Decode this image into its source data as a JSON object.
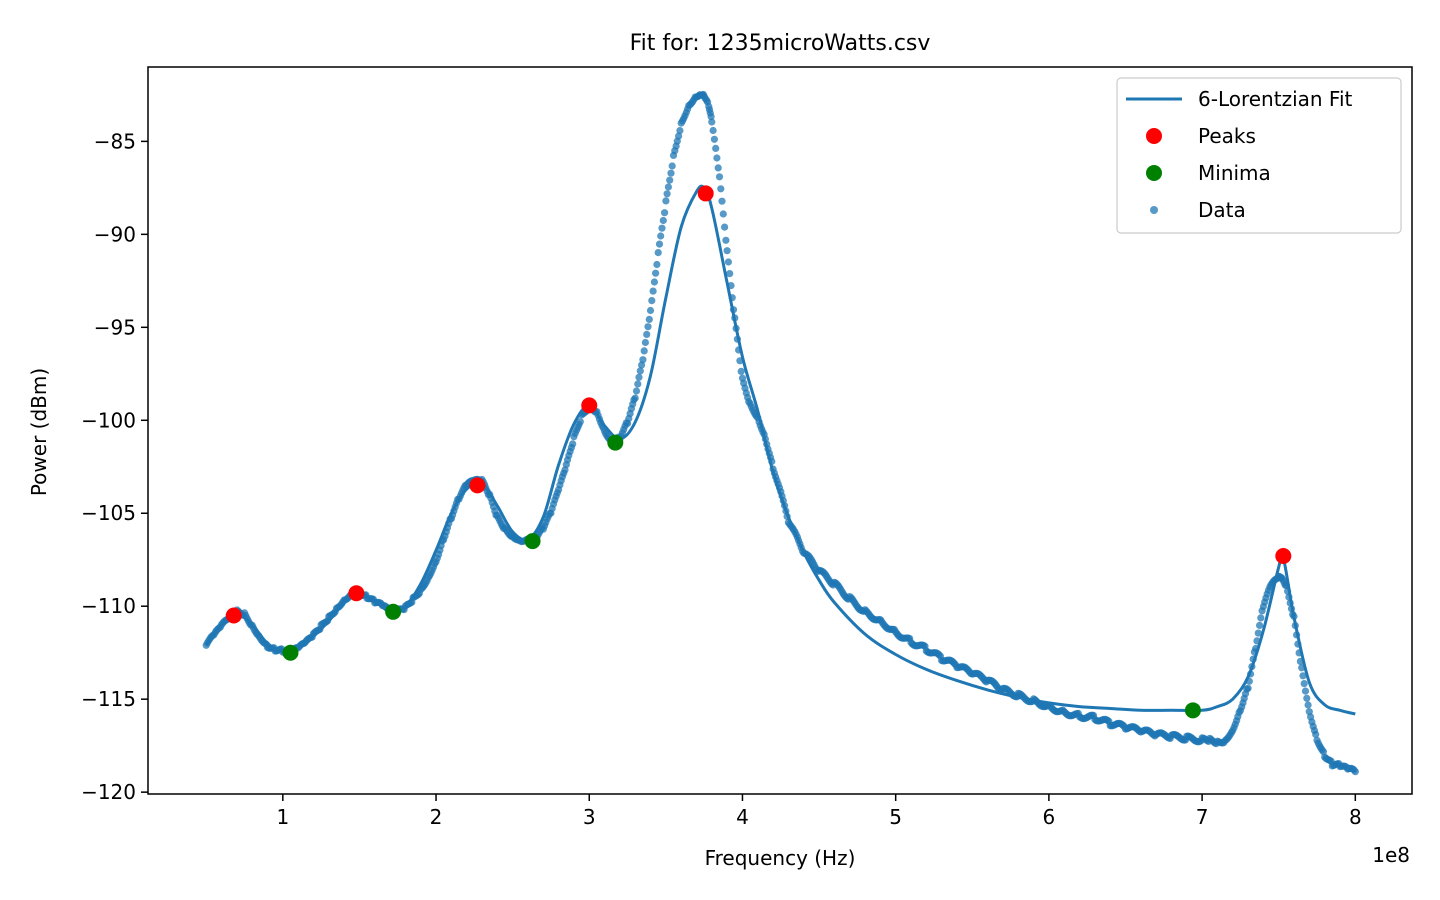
{
  "chart_data": {
    "type": "scatter",
    "title": "Fit for: 1235microWatts.csv",
    "xlabel": "Frequency (Hz)",
    "ylabel": "Power (dBm)",
    "x_offset_text": "1e8",
    "xlim": [
      0.5,
      8.0
    ],
    "ylim": [
      -120,
      -82
    ],
    "x_ticks": [
      1,
      2,
      3,
      4,
      5,
      6,
      7,
      8
    ],
    "x_tick_labels": [
      "1",
      "2",
      "3",
      "4",
      "5",
      "6",
      "7",
      "8"
    ],
    "y_ticks": [
      -85,
      -90,
      -95,
      -100,
      -105,
      -110,
      -115,
      -120
    ],
    "y_tick_labels": [
      "−85",
      "−90",
      "−95",
      "−100",
      "−105",
      "−110",
      "−115",
      "−120"
    ],
    "grid": false,
    "legend_position": "top-right",
    "colors": {
      "data": "#1f77b4",
      "fit": "#1f77b4",
      "peaks": "#ff0000",
      "minima": "#008000"
    },
    "series": [
      {
        "name": "6-Lorentzian Fit",
        "kind": "line",
        "x": [
          0.5,
          0.6,
          0.7,
          0.8,
          0.9,
          1.0,
          1.1,
          1.2,
          1.3,
          1.4,
          1.5,
          1.6,
          1.7,
          1.8,
          1.9,
          2.0,
          2.1,
          2.2,
          2.3,
          2.4,
          2.5,
          2.6,
          2.7,
          2.8,
          2.9,
          3.0,
          3.1,
          3.2,
          3.3,
          3.4,
          3.5,
          3.6,
          3.7,
          3.75,
          3.8,
          3.9,
          4.0,
          4.1,
          4.2,
          4.3,
          4.4,
          4.5,
          4.6,
          4.8,
          5.0,
          5.2,
          5.4,
          5.6,
          5.8,
          6.0,
          6.2,
          6.4,
          6.6,
          6.8,
          7.0,
          7.1,
          7.2,
          7.3,
          7.4,
          7.5,
          7.53,
          7.6,
          7.7,
          7.8,
          7.9,
          8.0
        ],
        "y": [
          -112.1,
          -111.0,
          -110.4,
          -111.0,
          -112.0,
          -112.4,
          -112.2,
          -111.6,
          -110.8,
          -109.8,
          -109.3,
          -109.7,
          -110.3,
          -110.0,
          -108.8,
          -107.0,
          -105.0,
          -103.7,
          -103.4,
          -104.6,
          -106.0,
          -106.4,
          -105.2,
          -102.4,
          -100.2,
          -99.2,
          -100.3,
          -101.0,
          -100.1,
          -97.6,
          -93.4,
          -89.6,
          -87.7,
          -87.5,
          -88.6,
          -92.6,
          -96.6,
          -99.5,
          -102.8,
          -105.2,
          -107.1,
          -108.6,
          -109.8,
          -111.5,
          -112.6,
          -113.4,
          -114.0,
          -114.5,
          -114.9,
          -115.2,
          -115.4,
          -115.5,
          -115.6,
          -115.6,
          -115.6,
          -115.4,
          -115.0,
          -113.8,
          -111.3,
          -107.9,
          -107.4,
          -110.6,
          -114.1,
          -115.3,
          -115.6,
          -115.8
        ]
      },
      {
        "name": "Peaks",
        "kind": "markers",
        "x": [
          0.68,
          1.48,
          2.27,
          3.0,
          3.76,
          7.53
        ],
        "y": [
          -110.5,
          -109.3,
          -103.5,
          -99.2,
          -87.8,
          -107.3
        ]
      },
      {
        "name": "Minima",
        "kind": "markers",
        "x": [
          1.05,
          1.72,
          2.63,
          3.17,
          6.94
        ],
        "y": [
          -112.5,
          -110.3,
          -106.5,
          -101.2,
          -115.6
        ]
      },
      {
        "name": "Data",
        "kind": "scatter",
        "x": [
          0.5,
          0.55,
          0.6,
          0.65,
          0.7,
          0.75,
          0.8,
          0.85,
          0.9,
          0.95,
          1.0,
          1.05,
          1.1,
          1.15,
          1.2,
          1.25,
          1.3,
          1.35,
          1.4,
          1.45,
          1.5,
          1.55,
          1.6,
          1.65,
          1.7,
          1.75,
          1.8,
          1.85,
          1.9,
          1.95,
          2.0,
          2.05,
          2.1,
          2.15,
          2.2,
          2.25,
          2.3,
          2.35,
          2.4,
          2.45,
          2.5,
          2.55,
          2.6,
          2.65,
          2.7,
          2.75,
          2.8,
          2.85,
          2.9,
          2.95,
          3.0,
          3.05,
          3.1,
          3.15,
          3.2,
          3.25,
          3.3,
          3.35,
          3.4,
          3.45,
          3.5,
          3.55,
          3.6,
          3.65,
          3.7,
          3.73,
          3.75,
          3.78,
          3.8,
          3.85,
          3.9,
          3.95,
          4.0,
          4.05,
          4.1,
          4.15,
          4.2,
          4.3,
          4.4,
          4.5,
          4.6,
          4.7,
          4.8,
          4.9,
          5.0,
          5.1,
          5.2,
          5.3,
          5.4,
          5.5,
          5.6,
          5.7,
          5.8,
          5.9,
          6.0,
          6.1,
          6.2,
          6.3,
          6.4,
          6.5,
          6.6,
          6.7,
          6.8,
          6.9,
          7.0,
          7.05,
          7.1,
          7.15,
          7.2,
          7.25,
          7.3,
          7.35,
          7.4,
          7.45,
          7.5,
          7.52,
          7.55,
          7.6,
          7.65,
          7.7,
          7.75,
          7.8,
          7.85,
          7.9,
          7.95,
          8.0
        ],
        "y": [
          -112.1,
          -111.6,
          -111.1,
          -110.6,
          -110.3,
          -110.4,
          -111.0,
          -111.6,
          -112.1,
          -112.3,
          -112.4,
          -112.5,
          -112.3,
          -112.0,
          -111.6,
          -111.1,
          -110.6,
          -110.1,
          -109.6,
          -109.3,
          -109.3,
          -109.5,
          -109.8,
          -110.0,
          -110.3,
          -110.3,
          -110.1,
          -109.6,
          -109.1,
          -108.4,
          -107.5,
          -106.3,
          -105.2,
          -104.2,
          -103.5,
          -103.3,
          -103.3,
          -104.1,
          -105.2,
          -105.8,
          -106.2,
          -106.4,
          -106.4,
          -106.3,
          -105.8,
          -105.0,
          -103.8,
          -102.5,
          -101.0,
          -99.8,
          -99.2,
          -99.5,
          -100.5,
          -101.2,
          -100.9,
          -100.1,
          -98.8,
          -96.8,
          -94.2,
          -91.1,
          -88.3,
          -85.8,
          -84.0,
          -83.0,
          -82.5,
          -82.4,
          -82.5,
          -83.1,
          -84.0,
          -87.0,
          -91.0,
          -94.6,
          -97.8,
          -99.1,
          -99.8,
          -100.9,
          -102.5,
          -105.4,
          -107.1,
          -108.1,
          -108.8,
          -109.6,
          -110.3,
          -110.8,
          -111.4,
          -111.9,
          -112.3,
          -112.8,
          -113.2,
          -113.6,
          -114.0,
          -114.5,
          -114.8,
          -115.1,
          -115.4,
          -115.7,
          -115.9,
          -116.0,
          -116.3,
          -116.5,
          -116.7,
          -116.9,
          -117.0,
          -117.1,
          -117.2,
          -117.2,
          -117.3,
          -117.2,
          -116.6,
          -115.5,
          -114.3,
          -112.2,
          -110.0,
          -108.9,
          -108.5,
          -108.6,
          -109.0,
          -110.6,
          -113.3,
          -115.6,
          -117.1,
          -118.0,
          -118.5,
          -118.6,
          -118.8,
          -118.9
        ]
      }
    ]
  }
}
